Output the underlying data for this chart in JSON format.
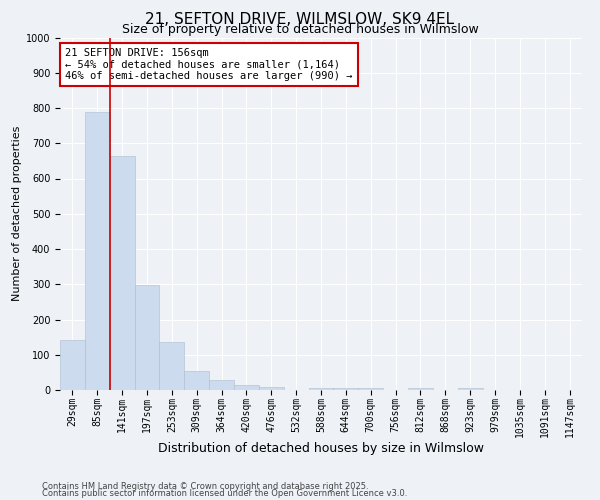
{
  "title": "21, SEFTON DRIVE, WILMSLOW, SK9 4EL",
  "subtitle": "Size of property relative to detached houses in Wilmslow",
  "xlabel": "Distribution of detached houses by size in Wilmslow",
  "ylabel": "Number of detached properties",
  "bar_color": "#ccdcee",
  "bar_edge_color": "#aabcce",
  "categories": [
    "29sqm",
    "85sqm",
    "141sqm",
    "197sqm",
    "253sqm",
    "309sqm",
    "364sqm",
    "420sqm",
    "476sqm",
    "532sqm",
    "588sqm",
    "644sqm",
    "700sqm",
    "756sqm",
    "812sqm",
    "868sqm",
    "923sqm",
    "979sqm",
    "1035sqm",
    "1091sqm",
    "1147sqm"
  ],
  "values": [
    143,
    790,
    663,
    298,
    135,
    55,
    28,
    13,
    8,
    0,
    7,
    5,
    5,
    0,
    5,
    0,
    7,
    0,
    0,
    0,
    0
  ],
  "ylim": [
    0,
    1000
  ],
  "yticks": [
    0,
    100,
    200,
    300,
    400,
    500,
    600,
    700,
    800,
    900,
    1000
  ],
  "vline_color": "#cc0000",
  "vline_x": 1.5,
  "annotation_text": "21 SEFTON DRIVE: 156sqm\n← 54% of detached houses are smaller (1,164)\n46% of semi-detached houses are larger (990) →",
  "annotation_fontsize": 7.5,
  "annotation_box_color": "white",
  "annotation_box_edgecolor": "#cc0000",
  "footnote1": "Contains HM Land Registry data © Crown copyright and database right 2025.",
  "footnote2": "Contains public sector information licensed under the Open Government Licence v3.0.",
  "background_color": "#eef2f7",
  "grid_color": "white",
  "title_fontsize": 11,
  "subtitle_fontsize": 9,
  "xlabel_fontsize": 9,
  "ylabel_fontsize": 8,
  "tick_fontsize": 7
}
